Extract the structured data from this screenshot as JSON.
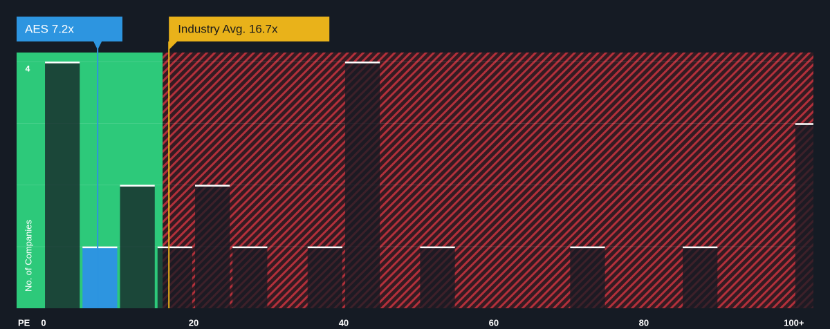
{
  "chart_data": {
    "type": "histogram",
    "x_label": "PE",
    "y_label": "No. of Companies",
    "bins": [
      0,
      5,
      10,
      15,
      20,
      25,
      30,
      35,
      40,
      45,
      50,
      55,
      60,
      65,
      70,
      75,
      80,
      85,
      90,
      95,
      100,
      105
    ],
    "counts": [
      4,
      1,
      2,
      1,
      2,
      1,
      0,
      1,
      4,
      0,
      1,
      0,
      0,
      0,
      1,
      0,
      0,
      1,
      0,
      0,
      3
    ],
    "xlim": [
      -3.6,
      102.6
    ],
    "ylim": [
      0,
      4.15
    ],
    "xticks": [
      0,
      20,
      40,
      60,
      80,
      {
        "value": 100,
        "label": "100+"
      }
    ],
    "yticks": [
      {
        "value": 1,
        "label": null
      },
      {
        "value": 2,
        "label": null
      },
      {
        "value": 3,
        "label": null
      },
      4
    ],
    "grid": true,
    "company": {
      "label": "AES 7.2x",
      "value": 7.2,
      "color": "#2d95e0"
    },
    "industry": {
      "label": "Industry Avg. 16.7x",
      "value": 16.7,
      "color": "#e9b21a"
    },
    "undervalued_color": "#2dc97a",
    "overvalued_color": "#b3303b"
  }
}
